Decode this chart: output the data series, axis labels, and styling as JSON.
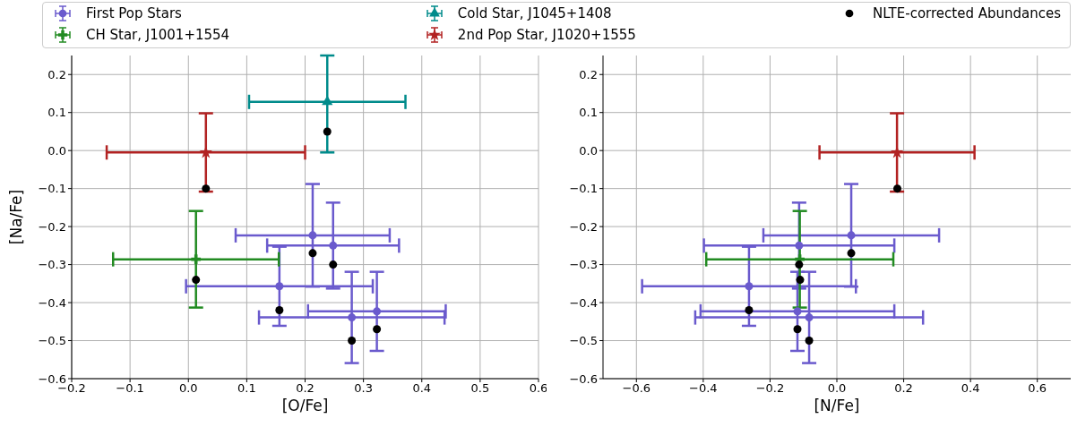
{
  "chart_data": [
    {
      "type": "scatter",
      "xlabel": "[O/Fe]",
      "ylabel": "[Na/Fe]",
      "xlim": [
        -0.2,
        0.6
      ],
      "ylim": [
        -0.6,
        0.25
      ],
      "xticks": [
        {
          "value": -0.2,
          "label": "−0.2"
        },
        {
          "value": -0.1,
          "label": "−0.1"
        },
        {
          "value": 0,
          "label": "0.0"
        },
        {
          "value": 0.1,
          "label": "0.1"
        },
        {
          "value": 0.2,
          "label": "0.2"
        },
        {
          "value": 0.3,
          "label": "0.3"
        },
        {
          "value": 0.4,
          "label": "0.4"
        },
        {
          "value": 0.5,
          "label": "0.5"
        },
        {
          "value": 0.6,
          "label": "0.6"
        }
      ],
      "yticks": [
        {
          "value": -0.6,
          "label": "−0.6"
        },
        {
          "value": -0.5,
          "label": "−0.5"
        },
        {
          "value": -0.4,
          "label": "−0.4"
        },
        {
          "value": -0.3,
          "label": "−0.3"
        },
        {
          "value": -0.2,
          "label": "−0.2"
        },
        {
          "value": -0.1,
          "label": "−0.1"
        },
        {
          "value": 0,
          "label": "0.0"
        },
        {
          "value": 0.1,
          "label": "0.1"
        },
        {
          "value": 0.2,
          "label": "0.2"
        }
      ],
      "grid": true,
      "legend": "top",
      "series": [
        {
          "name": "First Pop Stars",
          "color": "#6a5acd",
          "marker": "circle",
          "x": [
            0.213,
            0.248,
            0.156,
            0.28,
            0.323
          ],
          "values": [
            -0.223,
            -0.25,
            -0.357,
            -0.439,
            -0.423
          ],
          "xerrors": [
            0.132,
            0.113,
            0.16,
            0.159,
            0.118
          ],
          "errors": [
            0.135,
            0.113,
            0.104,
            0.12,
            0.104
          ]
        },
        {
          "name": "CH Star, J1001+1554",
          "color": "#228b22",
          "marker": "cross",
          "x": [
            0.013
          ],
          "values": [
            -0.286
          ],
          "xerrors": [
            0.142
          ],
          "errors": [
            0.127
          ]
        },
        {
          "name": "Cold Star, J1045+1408",
          "color": "#008b8b",
          "marker": "triangle",
          "x": [
            0.238
          ],
          "values": [
            0.128
          ],
          "xerrors": [
            0.134
          ],
          "errors": [
            [
              -0.005,
              0.25
            ]
          ]
        },
        {
          "name": "2nd Pop Star, J1020+1555",
          "color": "#b22222",
          "marker": "star",
          "x": [
            0.03
          ],
          "values": [
            -0.005
          ],
          "xerrors": [
            0.17
          ],
          "errors": [
            0.103
          ]
        },
        {
          "name": "NLTE-corrected Abundances",
          "color": "#000000",
          "marker": "circle",
          "x": [
            0.238,
            0.03,
            0.213,
            0.248,
            0.013,
            0.156,
            0.28,
            0.323
          ],
          "values": [
            0.05,
            -0.1,
            -0.27,
            -0.3,
            -0.34,
            -0.42,
            -0.5,
            -0.47
          ]
        }
      ]
    },
    {
      "type": "scatter",
      "xlabel": "[N/Fe]",
      "xlim": [
        -0.7,
        0.7
      ],
      "ylim": [
        -0.6,
        0.25
      ],
      "xticks": [
        {
          "value": -0.6,
          "label": "−0.6"
        },
        {
          "value": -0.4,
          "label": "−0.4"
        },
        {
          "value": -0.2,
          "label": "−0.2"
        },
        {
          "value": 0,
          "label": "0.0"
        },
        {
          "value": 0.2,
          "label": "0.2"
        },
        {
          "value": 0.4,
          "label": "0.4"
        },
        {
          "value": 0.6,
          "label": "0.6"
        }
      ],
      "yticks": [
        {
          "value": -0.6,
          "label": "−0.6"
        },
        {
          "value": -0.5,
          "label": "−0.5"
        },
        {
          "value": -0.4,
          "label": "−0.4"
        },
        {
          "value": -0.3,
          "label": "−0.3"
        },
        {
          "value": -0.2,
          "label": "−0.2"
        },
        {
          "value": -0.1,
          "label": "−0.1"
        },
        {
          "value": 0,
          "label": "0.0"
        },
        {
          "value": 0.1,
          "label": "0.1"
        },
        {
          "value": 0.2,
          "label": "0.2"
        }
      ],
      "grid": true,
      "series": [
        {
          "color": "#6a5acd",
          "marker": "circle",
          "x": [
            0.043,
            -0.113,
            -0.263,
            -0.083,
            -0.118
          ],
          "values": [
            -0.223,
            -0.25,
            -0.357,
            -0.439,
            -0.423
          ],
          "xerrors": [
            0.263,
            0.285,
            0.32,
            0.341,
            0.29
          ],
          "errors": [
            0.135,
            0.113,
            0.104,
            0.12,
            0.104
          ]
        },
        {
          "color": "#228b22",
          "marker": "cross",
          "x": [
            -0.111
          ],
          "values": [
            -0.286
          ],
          "xerrors": [
            0.28
          ],
          "errors": [
            0.127
          ]
        },
        {
          "color": "#b22222",
          "marker": "star",
          "x": [
            0.18
          ],
          "values": [
            -0.005
          ],
          "xerrors": [
            0.232
          ],
          "errors": [
            0.103
          ]
        },
        {
          "color": "#000000",
          "marker": "circle",
          "x": [
            0.181,
            0.043,
            -0.113,
            -0.11,
            -0.263,
            -0.118,
            -0.083
          ],
          "values": [
            -0.1,
            -0.27,
            -0.3,
            -0.34,
            -0.42,
            -0.47,
            -0.5
          ]
        }
      ]
    }
  ]
}
